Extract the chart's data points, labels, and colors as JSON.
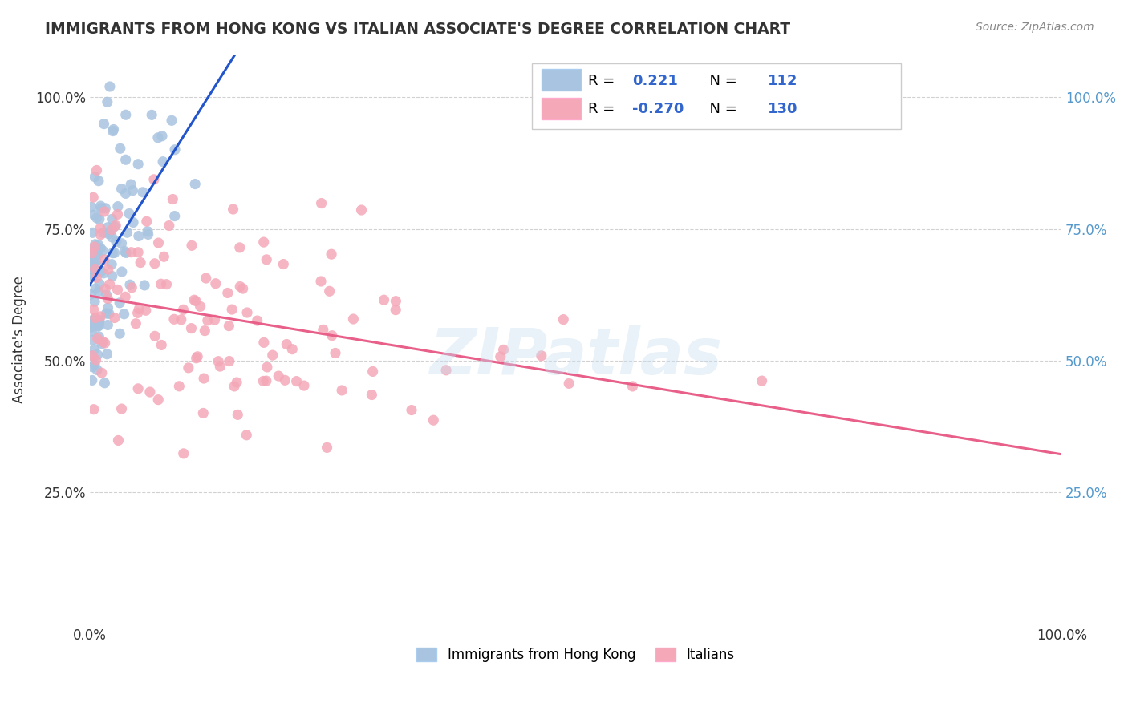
{
  "title": "IMMIGRANTS FROM HONG KONG VS ITALIAN ASSOCIATE'S DEGREE CORRELATION CHART",
  "source_text": "Source: ZipAtlas.com",
  "ylabel": "Associate's Degree",
  "x_lim": [
    0.0,
    1.0
  ],
  "y_lim": [
    0.0,
    1.08
  ],
  "r_blue": 0.221,
  "n_blue": 112,
  "r_pink": -0.27,
  "n_pink": 130,
  "blue_color": "#a8c4e0",
  "pink_color": "#f4a8b8",
  "blue_line_color": "#2255cc",
  "pink_line_color": "#e8608a",
  "legend_blue_label": "Immigrants from Hong Kong",
  "legend_pink_label": "Italians",
  "watermark": "ZIPatlas",
  "background_color": "#ffffff",
  "grid_color": "#cccccc",
  "right_tick_color": "#5599cc"
}
